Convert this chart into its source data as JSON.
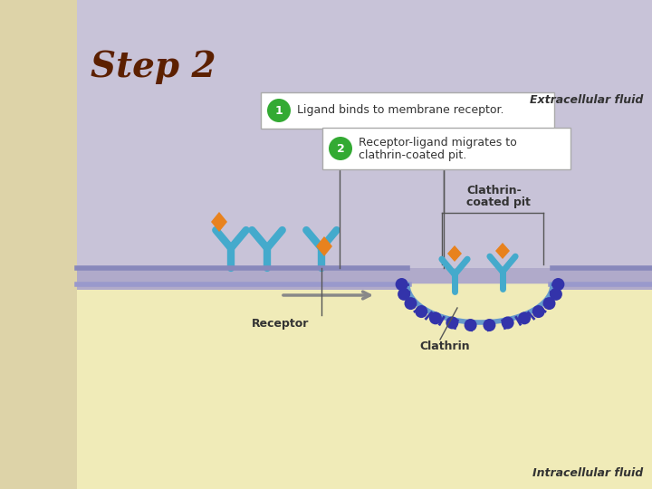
{
  "title": "Step 2",
  "title_color": "#5c2000",
  "bg_lavender": "#c8c3d8",
  "bg_tan": "#f0ebb8",
  "bg_corner": "#ddd3a8",
  "membrane_color": "#b0aaca",
  "extracellular_label": "Extracellular fluid",
  "intracellular_label": "Intracellular fluid",
  "step1_label": "Ligand binds to membrane receptor.",
  "step2_line1": "Receptor-ligand migrates to",
  "step2_line2": "clathrin-coated pit.",
  "clathrin_pit_label_line1": "Clathrin-",
  "clathrin_pit_label_line2": "coated pit",
  "receptor_label": "Receptor",
  "clathrin_label": "Clathrin",
  "receptor_color": "#44aacc",
  "ligand_color": "#e8821e",
  "clathrin_dot_color": "#3333aa",
  "membrane_line_color": "#8888bb",
  "green_color": "#33aa33",
  "box_bg": "#ffffff",
  "box_border": "#aaaaaa",
  "text_color": "#333333",
  "arrow_color": "#888888",
  "line_color": "#555555"
}
